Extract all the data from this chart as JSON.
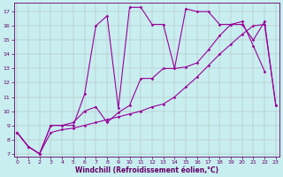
{
  "xlabel": "Windchill (Refroidissement éolien,°C)",
  "bg_color": "#c8eef0",
  "grid_color": "#b0b0b0",
  "line_color": "#990099",
  "xlim": [
    -0.3,
    23.3
  ],
  "ylim": [
    6.8,
    17.6
  ],
  "xticks": [
    0,
    1,
    2,
    3,
    4,
    5,
    6,
    7,
    8,
    9,
    10,
    11,
    12,
    13,
    14,
    15,
    16,
    17,
    18,
    19,
    20,
    21,
    22,
    23
  ],
  "yticks": [
    7,
    8,
    9,
    10,
    11,
    12,
    13,
    14,
    15,
    16,
    17
  ],
  "line1_x": [
    0,
    1,
    2,
    3,
    4,
    5,
    6,
    7,
    8,
    9,
    10,
    11,
    12,
    13,
    14,
    15,
    16,
    17,
    18,
    19,
    20,
    21,
    22
  ],
  "line1_y": [
    8.5,
    7.5,
    7.0,
    9.0,
    9.0,
    9.0,
    11.2,
    16.0,
    16.7,
    10.2,
    17.3,
    17.3,
    16.1,
    16.1,
    13.0,
    17.2,
    17.0,
    17.0,
    16.1,
    16.1,
    16.3,
    14.6,
    12.8
  ],
  "line2_x": [
    0,
    1,
    2,
    3,
    4,
    5,
    6,
    7,
    8,
    9,
    10,
    11,
    12,
    13,
    14,
    15,
    16,
    17,
    18,
    19,
    20,
    21,
    22,
    23
  ],
  "line2_y": [
    8.5,
    7.5,
    7.0,
    9.0,
    9.0,
    9.2,
    10.0,
    10.3,
    9.2,
    9.9,
    10.4,
    12.3,
    12.3,
    13.0,
    13.0,
    13.1,
    13.4,
    14.3,
    15.3,
    16.1,
    16.1,
    15.0,
    16.3,
    10.4
  ],
  "line3_x": [
    0,
    1,
    2,
    3,
    4,
    5,
    6,
    7,
    8,
    9,
    10,
    11,
    12,
    13,
    14,
    15,
    16,
    17,
    18,
    19,
    20,
    21,
    22,
    23
  ],
  "line3_y": [
    8.5,
    7.5,
    7.0,
    8.5,
    8.7,
    8.8,
    9.0,
    9.2,
    9.4,
    9.6,
    9.8,
    10.0,
    10.3,
    10.5,
    11.0,
    11.7,
    12.4,
    13.2,
    14.0,
    14.7,
    15.4,
    16.0,
    16.1,
    10.4
  ],
  "font_color": "#660066",
  "tick_fontsize": 4.5,
  "xlabel_fontsize": 5.5,
  "marker_size": 1.8,
  "line_width": 0.8
}
